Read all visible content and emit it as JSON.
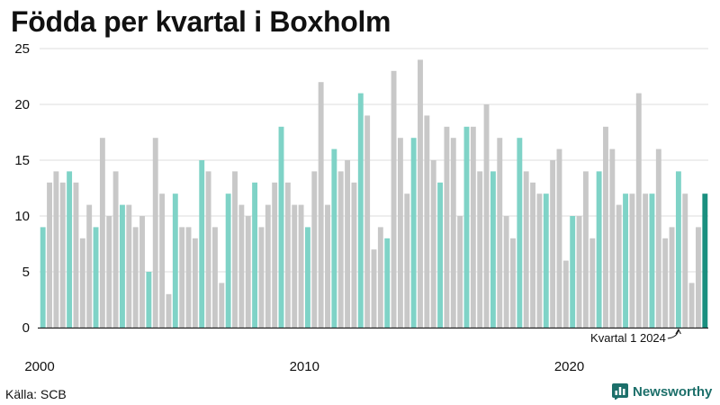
{
  "title": "Födda per kvartal i Boxholm",
  "source": "Källa: SCB",
  "brand": {
    "name": "Newsworthy",
    "icon": "bar-chart-logo-icon"
  },
  "colors": {
    "q1": "#7fd3c7",
    "other": "#c8c8c8",
    "latest": "#1a8f7f",
    "axis": "#222222",
    "grid": "#dcdcdc"
  },
  "chart_data": {
    "type": "bar",
    "title": "Födda per kvartal i Boxholm",
    "xlabel": "",
    "ylabel": "",
    "ylim": [
      0,
      25
    ],
    "yticks": [
      0,
      5,
      10,
      15,
      20,
      25
    ],
    "grid": true,
    "start": {
      "year": 2000,
      "quarter": 1
    },
    "xtick_labels": [
      "2000",
      "2010",
      "2020"
    ],
    "annotation": {
      "text": "Kvartal 1 2024"
    },
    "values": [
      9,
      13,
      14,
      13,
      14,
      13,
      8,
      11,
      9,
      17,
      10,
      14,
      11,
      11,
      9,
      10,
      5,
      17,
      12,
      3,
      12,
      9,
      9,
      8,
      15,
      14,
      9,
      4,
      12,
      14,
      11,
      10,
      13,
      9,
      11,
      13,
      18,
      13,
      11,
      11,
      9,
      14,
      22,
      11,
      16,
      14,
      15,
      13,
      21,
      19,
      7,
      9,
      8,
      23,
      17,
      12,
      17,
      24,
      19,
      15,
      13,
      18,
      17,
      10,
      18,
      18,
      14,
      20,
      14,
      17,
      10,
      8,
      17,
      14,
      13,
      12,
      12,
      15,
      16,
      6,
      10,
      10,
      14,
      8,
      14,
      18,
      16,
      11,
      12,
      12,
      21,
      12,
      12,
      16,
      8,
      9,
      14,
      12,
      4,
      9,
      12
    ]
  }
}
